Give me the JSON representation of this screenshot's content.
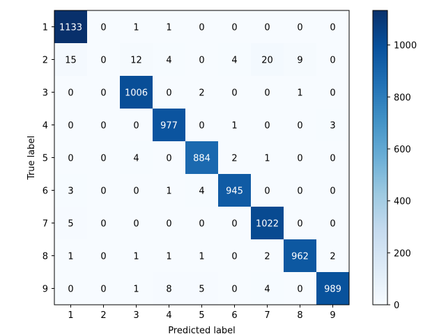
{
  "chart_data": {
    "type": "heatmap",
    "title": "",
    "xlabel": "Predicted label",
    "ylabel": "True label",
    "x_categories": [
      "1",
      "2",
      "3",
      "4",
      "5",
      "6",
      "7",
      "8",
      "9"
    ],
    "y_categories": [
      "1",
      "2",
      "3",
      "4",
      "5",
      "6",
      "7",
      "8",
      "9"
    ],
    "values": [
      [
        1133,
        0,
        1,
        1,
        0,
        0,
        0,
        0,
        0
      ],
      [
        15,
        0,
        12,
        4,
        0,
        4,
        20,
        9,
        0
      ],
      [
        0,
        0,
        1006,
        0,
        2,
        0,
        0,
        1,
        0
      ],
      [
        0,
        0,
        0,
        977,
        0,
        1,
        0,
        0,
        3
      ],
      [
        0,
        0,
        4,
        0,
        884,
        2,
        1,
        0,
        0
      ],
      [
        3,
        0,
        0,
        1,
        4,
        945,
        0,
        0,
        0
      ],
      [
        5,
        0,
        0,
        0,
        0,
        0,
        1022,
        0,
        0
      ],
      [
        1,
        0,
        1,
        1,
        1,
        0,
        2,
        962,
        2
      ],
      [
        0,
        0,
        1,
        8,
        5,
        0,
        4,
        0,
        989
      ]
    ],
    "colormap": "Blues",
    "color_low": "#f7fbff",
    "color_high": "#08306b",
    "vmin": 0,
    "vmax": 1133,
    "colorbar": {
      "ticks": [
        0,
        200,
        400,
        600,
        800,
        1000
      ],
      "labels": [
        "0",
        "200",
        "400",
        "600",
        "800",
        "1000"
      ]
    }
  }
}
